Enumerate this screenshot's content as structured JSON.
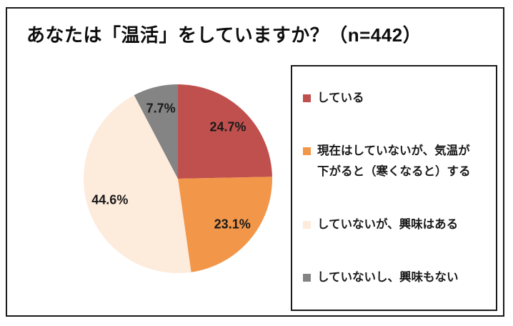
{
  "title": "あなたは「温活」をしていますか？（n=442）",
  "chart_data": {
    "type": "pie",
    "title": "あなたは「温活」をしていますか？（n=442）",
    "n": 442,
    "start_angle_deg": 0,
    "direction": "clockwise",
    "legend_position": "right",
    "grid": false,
    "label_color": "#1a1a1a",
    "slices": [
      {
        "label": "している",
        "value": 24.7,
        "display": "24.7%",
        "color": "#c0504d"
      },
      {
        "label": "現在はしていないが、気温が\n下がると（寒くなると）する",
        "value": 23.1,
        "display": "23.1%",
        "color": "#f2964a"
      },
      {
        "label": "していないが、興味はある",
        "value": 44.6,
        "display": "44.6%",
        "color": "#fdebdc"
      },
      {
        "label": "していないし、興味もない",
        "value": 7.7,
        "display": "7.7%",
        "color": "#848484"
      }
    ]
  }
}
